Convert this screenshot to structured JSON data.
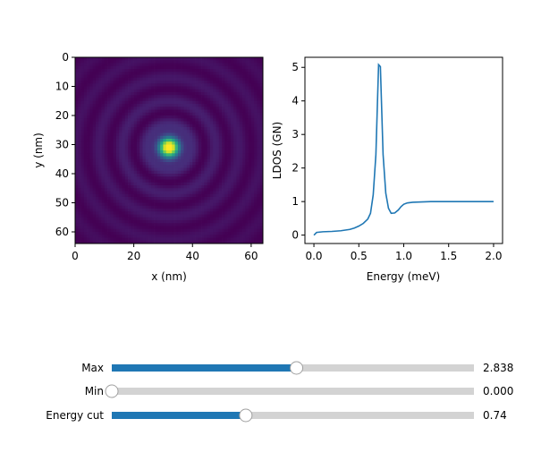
{
  "chart_data": [
    {
      "type": "heatmap",
      "colormap": "viridis",
      "xlabel": "x (nm)",
      "ylabel": "y (nm)",
      "xlim": [
        0,
        64
      ],
      "ylim": [
        64,
        0
      ],
      "xticks": [
        "0",
        "20",
        "40",
        "60"
      ],
      "yticks": [
        "0",
        "10",
        "20",
        "30",
        "40",
        "50",
        "60"
      ],
      "peak_center": [
        32,
        31
      ],
      "description_values": {
        "radial_ring_spacing_nm": 8
      }
    },
    {
      "type": "line",
      "xlabel": "Energy (meV)",
      "ylabel": "LDOS (GN)",
      "xlim": [
        -0.1,
        2.1
      ],
      "ylim": [
        -0.25,
        5.3
      ],
      "xticks": [
        "0.0",
        "0.5",
        "1.0",
        "1.5",
        "2.0"
      ],
      "yticks": [
        "0",
        "1",
        "2",
        "3",
        "4",
        "5"
      ],
      "color": "#1f77b4",
      "series": [
        {
          "x": [
            0.0,
            0.03,
            0.1,
            0.2,
            0.3,
            0.4,
            0.45,
            0.5,
            0.55,
            0.6,
            0.63,
            0.66,
            0.69,
            0.72,
            0.74,
            0.77,
            0.8,
            0.83,
            0.86,
            0.9,
            0.94,
            0.97,
            1.0,
            1.04,
            1.1,
            1.2,
            1.3,
            1.5,
            1.7,
            2.0
          ],
          "y": [
            0.0,
            0.08,
            0.1,
            0.11,
            0.13,
            0.17,
            0.21,
            0.27,
            0.35,
            0.48,
            0.65,
            1.2,
            2.4,
            5.08,
            5.02,
            2.4,
            1.25,
            0.8,
            0.65,
            0.66,
            0.75,
            0.85,
            0.92,
            0.96,
            0.98,
            0.99,
            1.0,
            1.0,
            1.0,
            1.0
          ]
        }
      ]
    }
  ],
  "sliders": [
    {
      "label": "Max",
      "value_text": "2.838",
      "fraction": 0.51
    },
    {
      "label": "Min",
      "value_text": "0.000",
      "fraction": 0.0
    },
    {
      "label": "Energy cut",
      "value_text": "0.74",
      "fraction": 0.37
    }
  ],
  "colors": {
    "slider_fill": "#1f77b4",
    "slider_track": "#d3d3d3"
  }
}
